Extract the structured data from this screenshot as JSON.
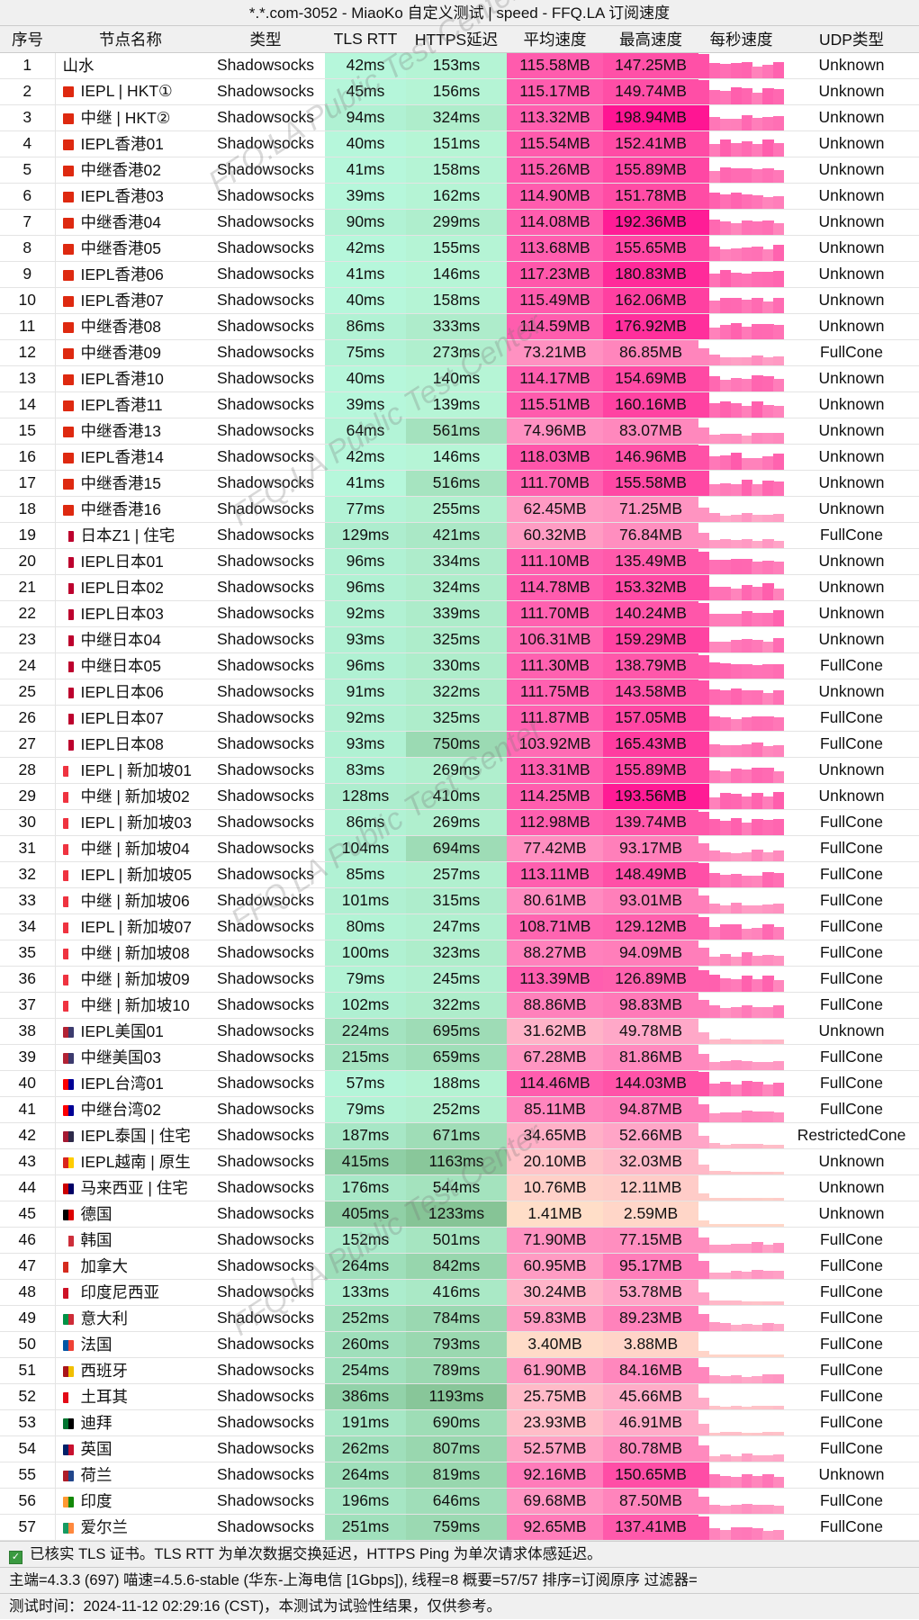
{
  "title": "*.*.com-3052 - MiaoKo 自定义测试 | speed - FFQ.LA 订阅速度",
  "watermark": "FFQ.LA Public Test Center",
  "columns": [
    "序号",
    "节点名称",
    "类型",
    "TLS RTT",
    "HTTPS延迟",
    "平均速度",
    "最高速度",
    "每秒速度",
    "UDP类型"
  ],
  "colors": {
    "tls_low": "#b6f7db",
    "tls_high": "#8fcfa5",
    "https_low": "#b6f5d6",
    "https_high": "#86c496",
    "speed_peak": "#ff1493",
    "speed_low": "#ffe0c8"
  },
  "rows": [
    [
      "1",
      "山水",
      "",
      "Shadowsocks",
      "42ms",
      "153ms",
      "115.58MB",
      "147.25MB",
      "Unknown"
    ],
    [
      "2",
      "IEPL | HKT①",
      "hk",
      "Shadowsocks",
      "45ms",
      "156ms",
      "115.17MB",
      "149.74MB",
      "Unknown"
    ],
    [
      "3",
      "中继 | HKT②",
      "hk",
      "Shadowsocks",
      "94ms",
      "324ms",
      "113.32MB",
      "198.94MB",
      "Unknown"
    ],
    [
      "4",
      "IEPL香港01",
      "hk",
      "Shadowsocks",
      "40ms",
      "151ms",
      "115.54MB",
      "152.41MB",
      "Unknown"
    ],
    [
      "5",
      "中继香港02",
      "hk",
      "Shadowsocks",
      "41ms",
      "158ms",
      "115.26MB",
      "155.89MB",
      "Unknown"
    ],
    [
      "6",
      "IEPL香港03",
      "hk",
      "Shadowsocks",
      "39ms",
      "162ms",
      "114.90MB",
      "151.78MB",
      "Unknown"
    ],
    [
      "7",
      "中继香港04",
      "hk",
      "Shadowsocks",
      "90ms",
      "299ms",
      "114.08MB",
      "192.36MB",
      "Unknown"
    ],
    [
      "8",
      "中继香港05",
      "hk",
      "Shadowsocks",
      "42ms",
      "155ms",
      "113.68MB",
      "155.65MB",
      "Unknown"
    ],
    [
      "9",
      "IEPL香港06",
      "hk",
      "Shadowsocks",
      "41ms",
      "146ms",
      "117.23MB",
      "180.83MB",
      "Unknown"
    ],
    [
      "10",
      "IEPL香港07",
      "hk",
      "Shadowsocks",
      "40ms",
      "158ms",
      "115.49MB",
      "162.06MB",
      "Unknown"
    ],
    [
      "11",
      "中继香港08",
      "hk",
      "Shadowsocks",
      "86ms",
      "333ms",
      "114.59MB",
      "176.92MB",
      "Unknown"
    ],
    [
      "12",
      "中继香港09",
      "hk",
      "Shadowsocks",
      "75ms",
      "273ms",
      "73.21MB",
      "86.85MB",
      "FullCone"
    ],
    [
      "13",
      "IEPL香港10",
      "hk",
      "Shadowsocks",
      "40ms",
      "140ms",
      "114.17MB",
      "154.69MB",
      "Unknown"
    ],
    [
      "14",
      "IEPL香港11",
      "hk",
      "Shadowsocks",
      "39ms",
      "139ms",
      "115.51MB",
      "160.16MB",
      "Unknown"
    ],
    [
      "15",
      "中继香港13",
      "hk",
      "Shadowsocks",
      "64ms",
      "561ms",
      "74.96MB",
      "83.07MB",
      "Unknown"
    ],
    [
      "16",
      "IEPL香港14",
      "hk",
      "Shadowsocks",
      "42ms",
      "146ms",
      "118.03MB",
      "146.96MB",
      "Unknown"
    ],
    [
      "17",
      "中继香港15",
      "hk",
      "Shadowsocks",
      "41ms",
      "516ms",
      "111.70MB",
      "155.58MB",
      "Unknown"
    ],
    [
      "18",
      "中继香港16",
      "hk",
      "Shadowsocks",
      "77ms",
      "255ms",
      "62.45MB",
      "71.25MB",
      "Unknown"
    ],
    [
      "19",
      "日本Z1 | 住宅",
      "jp",
      "Shadowsocks",
      "129ms",
      "421ms",
      "60.32MB",
      "76.84MB",
      "FullCone"
    ],
    [
      "20",
      "IEPL日本01",
      "jp",
      "Shadowsocks",
      "96ms",
      "334ms",
      "111.10MB",
      "135.49MB",
      "Unknown"
    ],
    [
      "21",
      "IEPL日本02",
      "jp",
      "Shadowsocks",
      "96ms",
      "324ms",
      "114.78MB",
      "153.32MB",
      "Unknown"
    ],
    [
      "22",
      "IEPL日本03",
      "jp",
      "Shadowsocks",
      "92ms",
      "339ms",
      "111.70MB",
      "140.24MB",
      "Unknown"
    ],
    [
      "23",
      "中继日本04",
      "jp",
      "Shadowsocks",
      "93ms",
      "325ms",
      "106.31MB",
      "159.29MB",
      "Unknown"
    ],
    [
      "24",
      "中继日本05",
      "jp",
      "Shadowsocks",
      "96ms",
      "330ms",
      "111.30MB",
      "138.79MB",
      "FullCone"
    ],
    [
      "25",
      "IEPL日本06",
      "jp",
      "Shadowsocks",
      "91ms",
      "322ms",
      "111.75MB",
      "143.58MB",
      "Unknown"
    ],
    [
      "26",
      "IEPL日本07",
      "jp",
      "Shadowsocks",
      "92ms",
      "325ms",
      "111.87MB",
      "157.05MB",
      "FullCone"
    ],
    [
      "27",
      "IEPL日本08",
      "jp",
      "Shadowsocks",
      "93ms",
      "750ms",
      "103.92MB",
      "165.43MB",
      "FullCone"
    ],
    [
      "28",
      "IEPL | 新加坡01",
      "sg",
      "Shadowsocks",
      "83ms",
      "269ms",
      "113.31MB",
      "155.89MB",
      "Unknown"
    ],
    [
      "29",
      "中继 | 新加坡02",
      "sg",
      "Shadowsocks",
      "128ms",
      "410ms",
      "114.25MB",
      "193.56MB",
      "Unknown"
    ],
    [
      "30",
      "IEPL | 新加坡03",
      "sg",
      "Shadowsocks",
      "86ms",
      "269ms",
      "112.98MB",
      "139.74MB",
      "FullCone"
    ],
    [
      "31",
      "中继 | 新加坡04",
      "sg",
      "Shadowsocks",
      "104ms",
      "694ms",
      "77.42MB",
      "93.17MB",
      "FullCone"
    ],
    [
      "32",
      "IEPL | 新加坡05",
      "sg",
      "Shadowsocks",
      "85ms",
      "257ms",
      "113.11MB",
      "148.49MB",
      "FullCone"
    ],
    [
      "33",
      "中继 | 新加坡06",
      "sg",
      "Shadowsocks",
      "101ms",
      "315ms",
      "80.61MB",
      "93.01MB",
      "FullCone"
    ],
    [
      "34",
      "IEPL | 新加坡07",
      "sg",
      "Shadowsocks",
      "80ms",
      "247ms",
      "108.71MB",
      "129.12MB",
      "FullCone"
    ],
    [
      "35",
      "中继 | 新加坡08",
      "sg",
      "Shadowsocks",
      "100ms",
      "323ms",
      "88.27MB",
      "94.09MB",
      "FullCone"
    ],
    [
      "36",
      "中继 | 新加坡09",
      "sg",
      "Shadowsocks",
      "79ms",
      "245ms",
      "113.39MB",
      "126.89MB",
      "FullCone"
    ],
    [
      "37",
      "中继 | 新加坡10",
      "sg",
      "Shadowsocks",
      "102ms",
      "322ms",
      "88.86MB",
      "98.83MB",
      "FullCone"
    ],
    [
      "38",
      "IEPL美国01",
      "us",
      "Shadowsocks",
      "224ms",
      "695ms",
      "31.62MB",
      "49.78MB",
      "Unknown"
    ],
    [
      "39",
      "中继美国03",
      "us",
      "Shadowsocks",
      "215ms",
      "659ms",
      "67.28MB",
      "81.86MB",
      "FullCone"
    ],
    [
      "40",
      "IEPL台湾01",
      "tw",
      "Shadowsocks",
      "57ms",
      "188ms",
      "114.46MB",
      "144.03MB",
      "FullCone"
    ],
    [
      "41",
      "中继台湾02",
      "tw",
      "Shadowsocks",
      "79ms",
      "252ms",
      "85.11MB",
      "94.87MB",
      "FullCone"
    ],
    [
      "42",
      "IEPL泰国 | 住宅",
      "th",
      "Shadowsocks",
      "187ms",
      "671ms",
      "34.65MB",
      "52.66MB",
      "RestrictedCone"
    ],
    [
      "43",
      "IEPL越南 | 原生",
      "vn",
      "Shadowsocks",
      "415ms",
      "1163ms",
      "20.10MB",
      "32.03MB",
      "Unknown"
    ],
    [
      "44",
      "马来西亚 | 住宅",
      "my",
      "Shadowsocks",
      "176ms",
      "544ms",
      "10.76MB",
      "12.11MB",
      "Unknown"
    ],
    [
      "45",
      "德国",
      "de",
      "Shadowsocks",
      "405ms",
      "1233ms",
      "1.41MB",
      "2.59MB",
      "Unknown"
    ],
    [
      "46",
      "韩国",
      "kr",
      "Shadowsocks",
      "152ms",
      "501ms",
      "71.90MB",
      "77.15MB",
      "FullCone"
    ],
    [
      "47",
      "加拿大",
      "ca",
      "Shadowsocks",
      "264ms",
      "842ms",
      "60.95MB",
      "95.17MB",
      "FullCone"
    ],
    [
      "48",
      "印度尼西亚",
      "id",
      "Shadowsocks",
      "133ms",
      "416ms",
      "30.24MB",
      "53.78MB",
      "FullCone"
    ],
    [
      "49",
      "意大利",
      "it",
      "Shadowsocks",
      "252ms",
      "784ms",
      "59.83MB",
      "89.23MB",
      "FullCone"
    ],
    [
      "50",
      "法国",
      "fr",
      "Shadowsocks",
      "260ms",
      "793ms",
      "3.40MB",
      "3.88MB",
      "FullCone"
    ],
    [
      "51",
      "西班牙",
      "es",
      "Shadowsocks",
      "254ms",
      "789ms",
      "61.90MB",
      "84.16MB",
      "FullCone"
    ],
    [
      "52",
      "土耳其",
      "tr",
      "Shadowsocks",
      "386ms",
      "1193ms",
      "25.75MB",
      "45.66MB",
      "FullCone"
    ],
    [
      "53",
      "迪拜",
      "ae",
      "Shadowsocks",
      "191ms",
      "690ms",
      "23.93MB",
      "46.91MB",
      "FullCone"
    ],
    [
      "54",
      "英国",
      "gb",
      "Shadowsocks",
      "262ms",
      "807ms",
      "52.57MB",
      "80.78MB",
      "FullCone"
    ],
    [
      "55",
      "荷兰",
      "nl",
      "Shadowsocks",
      "264ms",
      "819ms",
      "92.16MB",
      "150.65MB",
      "Unknown"
    ],
    [
      "56",
      "印度",
      "in",
      "Shadowsocks",
      "196ms",
      "646ms",
      "69.68MB",
      "87.50MB",
      "FullCone"
    ],
    [
      "57",
      "爱尔兰",
      "ie",
      "Shadowsocks",
      "251ms",
      "759ms",
      "92.65MB",
      "137.41MB",
      "FullCone"
    ]
  ],
  "footer": {
    "line1": "已核实 TLS 证书。TLS RTT 为单次数据交换延迟，HTTPS Ping 为单次请求体感延迟。",
    "line2": "主端=4.3.3 (697) 喵速=4.5.6-stable (华东-上海电信 [1Gbps]), 线程=8 概要=57/57 排序=订阅原序 过滤器=",
    "line3": "测试时间：2024-11-12 02:29:16 (CST)，本测试为试验性结果，仅供参考。"
  }
}
